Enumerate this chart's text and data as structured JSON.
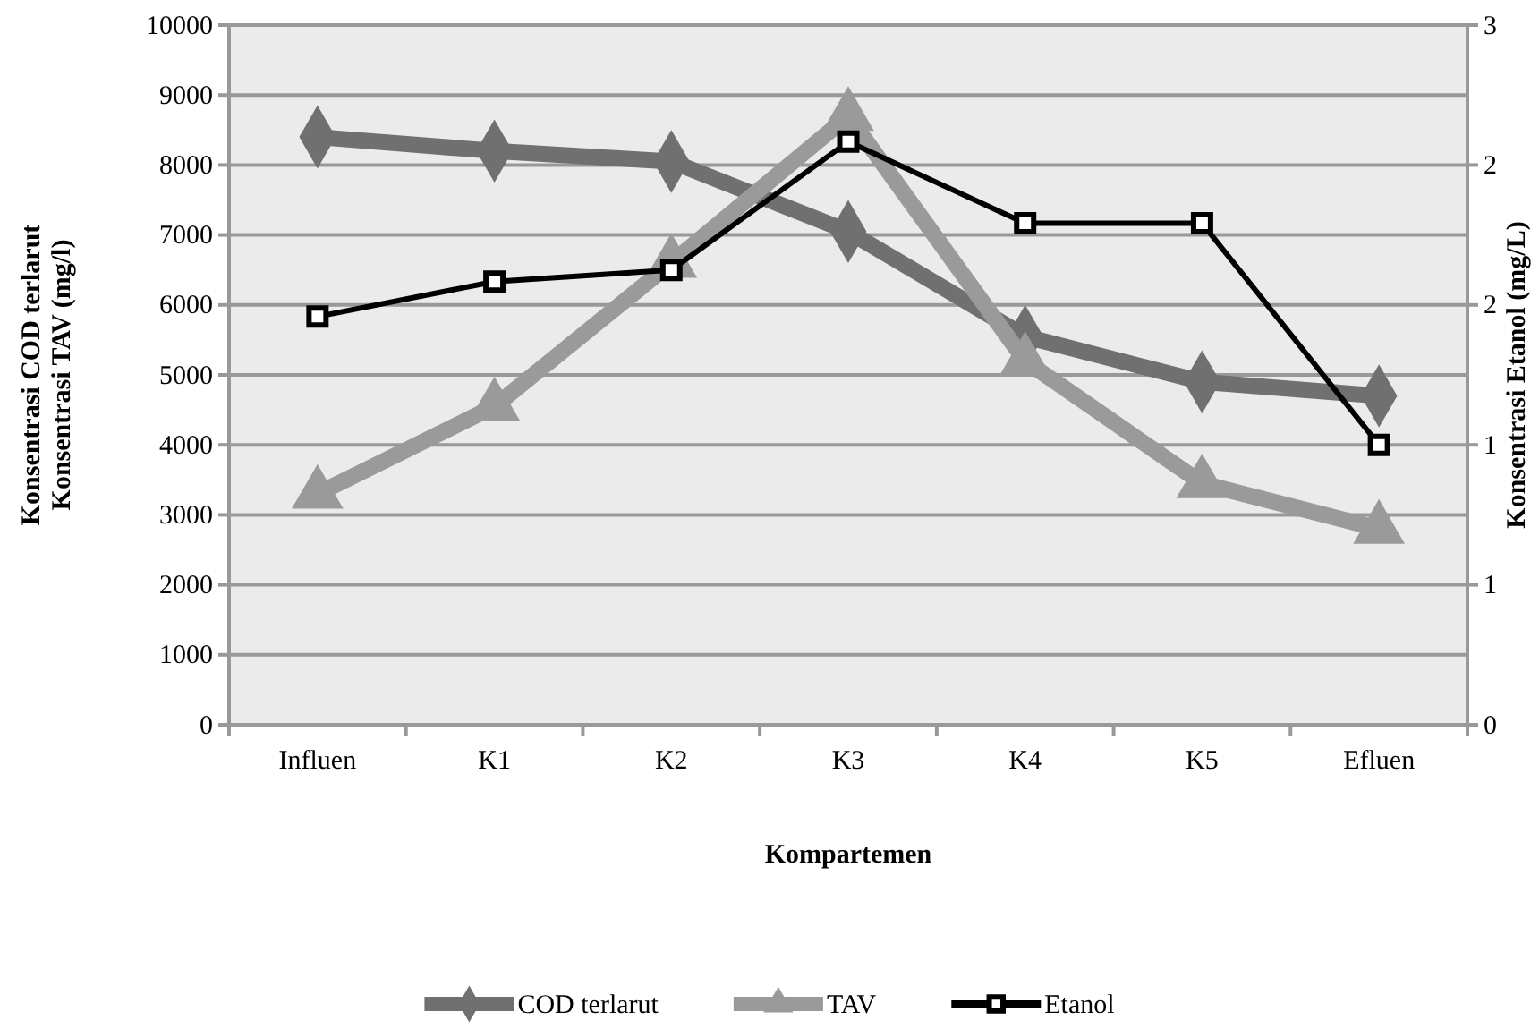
{
  "chart_data": {
    "type": "line",
    "xlabel": "Kompartemen",
    "ylabel": "Konsentrasi COD terlarut\nKonsentrasi TAV (mg/l)",
    "y2label": "Konsentrasi Etanol (mg/L)",
    "categories": [
      "Influen",
      "K1",
      "K2",
      "K3",
      "K4",
      "K5",
      "Efluen"
    ],
    "series": [
      {
        "name": "COD terlarut",
        "color": "#707070",
        "marker": "diamond",
        "values": [
          8400,
          8200,
          8050,
          7050,
          5550,
          4900,
          4700
        ]
      },
      {
        "name": "TAV",
        "color": "#9a9a9a",
        "marker": "triangle",
        "values": [
          3300,
          4550,
          6600,
          8700,
          5200,
          3450,
          2800
        ]
      },
      {
        "name": "Etanol",
        "color": "#000000",
        "marker": "square",
        "axis": "y2",
        "values": [
          1.75,
          1.9,
          1.95,
          2.5,
          2.15,
          2.15,
          1.2
        ]
      }
    ],
    "ylim": [
      0,
      10000
    ],
    "yticks": [
      0,
      1000,
      2000,
      3000,
      4000,
      5000,
      6000,
      7000,
      8000,
      9000,
      10000
    ],
    "y2lim": [
      0,
      3
    ],
    "y2ticks": [
      0,
      {
        "value": 0.6,
        "label": "1"
      },
      {
        "value": 1.2,
        "label": "1"
      },
      {
        "value": 1.8,
        "label": "2"
      },
      {
        "value": 2.4,
        "label": "2"
      },
      3
    ],
    "grid": "y",
    "legend": "bottom"
  }
}
